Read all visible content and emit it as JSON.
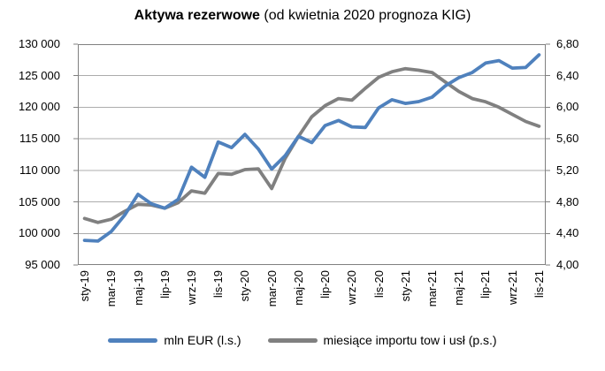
{
  "title": {
    "main": "Aktywa rezerwowe",
    "suffix": " (od kwietnia 2020 prognoza KIG)"
  },
  "legend": {
    "items": [
      {
        "label": "mln EUR (l.s.)",
        "color": "#4F81BD"
      },
      {
        "label": "miesiące importu tow i usł (p.s.)",
        "color": "#808080"
      }
    ]
  },
  "chart_data": {
    "type": "line",
    "title": "Aktywa rezerwowe (od kwietnia 2020 prognoza KIG)",
    "categories": [
      "sty-19",
      "lut-19",
      "mar-19",
      "kwi-19",
      "maj-19",
      "cze-19",
      "lip-19",
      "sie-19",
      "wrz-19",
      "paź-19",
      "lis-19",
      "gru-19",
      "sty-20",
      "lut-20",
      "mar-20",
      "kwi-20",
      "maj-20",
      "cze-20",
      "lip-20",
      "sie-20",
      "wrz-20",
      "paź-20",
      "lis-20",
      "gru-20",
      "sty-21",
      "lut-21",
      "mar-21",
      "kwi-21",
      "maj-21",
      "cze-21",
      "lip-21",
      "sie-21",
      "wrz-21",
      "paź-21",
      "lis-21"
    ],
    "x_tick_labels_shown": [
      "sty-19",
      "mar-19",
      "maj-19",
      "lip-19",
      "wrz-19",
      "lis-19",
      "sty-20",
      "mar-20",
      "maj-20",
      "lip-20",
      "wrz-20",
      "lis-20",
      "sty-21",
      "mar-21",
      "maj-21",
      "lip-21",
      "wrz-21",
      "lis-21"
    ],
    "series": [
      {
        "name": "mln EUR (l.s.)",
        "axis": "left",
        "color": "#4F81BD",
        "values": [
          98900,
          98800,
          100300,
          102900,
          106200,
          104700,
          104000,
          105400,
          110500,
          108900,
          114500,
          113600,
          115700,
          113400,
          110200,
          112300,
          115400,
          114400,
          117100,
          117900,
          116900,
          116800,
          119900,
          121200,
          120600,
          120900,
          121600,
          123400,
          124700,
          125500,
          127000,
          127400,
          126200,
          126300,
          128300
        ]
      },
      {
        "name": "miesiące importu tow i usł (p.s.)",
        "axis": "right",
        "color": "#808080",
        "values": [
          4.59,
          4.54,
          4.58,
          4.68,
          4.77,
          4.76,
          4.72,
          4.79,
          4.94,
          4.91,
          5.16,
          5.15,
          5.21,
          5.22,
          4.97,
          5.35,
          5.63,
          5.88,
          6.02,
          6.11,
          6.09,
          6.24,
          6.38,
          6.45,
          6.49,
          6.47,
          6.44,
          6.32,
          6.2,
          6.11,
          6.07,
          6.0,
          5.91,
          5.82,
          5.76
        ]
      }
    ],
    "left_axis": {
      "min": 95000,
      "max": 130000,
      "step": 5000,
      "tick_labels": [
        "130 000",
        "125 000",
        "120 000",
        "115 000",
        "110 000",
        "105 000",
        "100 000",
        "95 000"
      ]
    },
    "right_axis": {
      "min": 4.0,
      "max": 6.8,
      "step": 0.4,
      "tick_labels": [
        "6,80",
        "6,40",
        "6,00",
        "5,60",
        "5,20",
        "4,80",
        "4,40",
        "4,00"
      ]
    },
    "grid": true,
    "legend_position": "bottom",
    "styles": {
      "grid_color": "#ACACAC",
      "border_color": "#808080",
      "text_color": "#000000",
      "background": "#FFFFFF"
    }
  }
}
